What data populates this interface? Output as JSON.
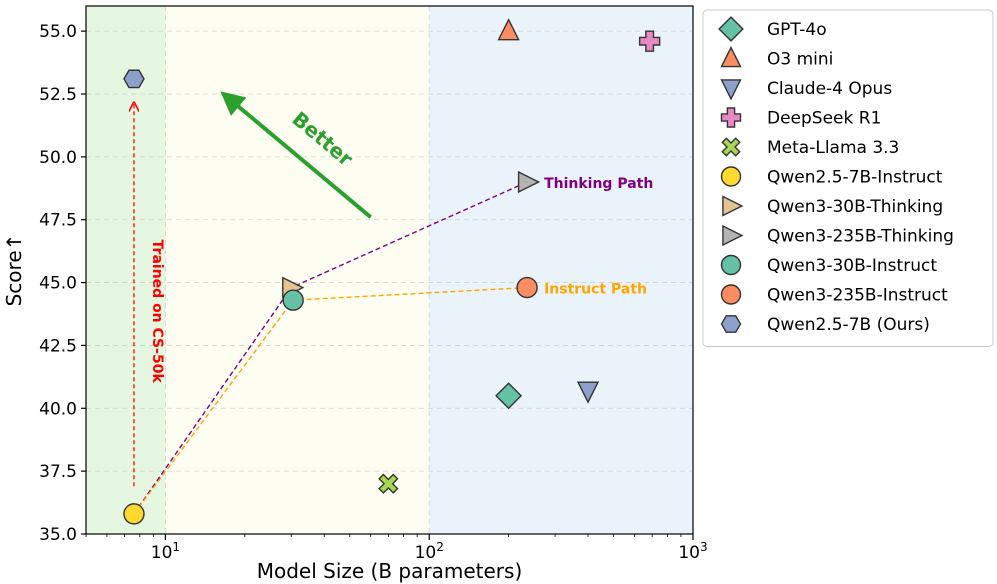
{
  "chart_data": {
    "type": "scatter",
    "xscale": "log",
    "xlim": [
      5,
      1000
    ],
    "ylim": [
      35,
      56
    ],
    "xlabel": "Model Size (B parameters)",
    "ylabel": "Score",
    "ylabel_arrow": "↑",
    "x_ticks": [
      {
        "value": 10,
        "base": "10",
        "exp": "1"
      },
      {
        "value": 100,
        "base": "10",
        "exp": "2"
      },
      {
        "value": 1000,
        "base": "10",
        "exp": "3"
      }
    ],
    "y_ticks": [
      "35.0",
      "37.5",
      "40.0",
      "42.5",
      "45.0",
      "47.5",
      "50.0",
      "52.5",
      "55.0"
    ],
    "grid": true,
    "regions": [
      {
        "from": 5,
        "to": 10,
        "color": "#e6f7e1"
      },
      {
        "from": 10,
        "to": 100,
        "color": "#fdfdf1"
      },
      {
        "from": 100,
        "to": 1000,
        "color": "#eaf2fa"
      }
    ],
    "series": [
      {
        "name": "GPT-4o",
        "x": 200,
        "y": 40.5,
        "marker": "diamond",
        "color": "#66c2a5"
      },
      {
        "name": "O3 mini",
        "x": 200,
        "y": 55.0,
        "marker": "triangle-up",
        "color": "#fc8d62"
      },
      {
        "name": "Claude-4 Opus",
        "x": 400,
        "y": 40.7,
        "marker": "triangle-down",
        "color": "#8da0cb"
      },
      {
        "name": "DeepSeek R1",
        "x": 685,
        "y": 54.6,
        "marker": "plus",
        "color": "#e78ac3"
      },
      {
        "name": "Meta-Llama 3.3",
        "x": 70,
        "y": 37.0,
        "marker": "x",
        "color": "#a6d854"
      },
      {
        "name": "Qwen2.5-7B-Instruct",
        "x": 7.6,
        "y": 35.8,
        "marker": "circle",
        "color": "#ffd92f"
      },
      {
        "name": "Qwen3-30B-Thinking",
        "x": 30,
        "y": 44.8,
        "marker": "triangle-right",
        "color": "#e5c494"
      },
      {
        "name": "Qwen3-235B-Thinking",
        "x": 235,
        "y": 49.0,
        "marker": "triangle-right",
        "color": "#b3b3b3"
      },
      {
        "name": "Qwen3-30B-Instruct",
        "x": 30.5,
        "y": 44.3,
        "marker": "circle",
        "color": "#66c2a5"
      },
      {
        "name": "Qwen3-235B-Instruct",
        "x": 235,
        "y": 44.8,
        "marker": "circle",
        "color": "#fc8d62"
      },
      {
        "name": "Qwen2.5-7B (Ours)",
        "x": 7.6,
        "y": 53.1,
        "marker": "hexagon",
        "color": "#8da0cb"
      }
    ],
    "paths": [
      {
        "label": "Thinking Path",
        "color": "#800080",
        "points": [
          [
            7.6,
            35.8
          ],
          [
            30,
            44.8
          ],
          [
            235,
            49.0
          ]
        ]
      },
      {
        "label": "Instruct Path",
        "color": "#ffa500",
        "points": [
          [
            7.6,
            35.8
          ],
          [
            30.5,
            44.3
          ],
          [
            235,
            44.8
          ]
        ]
      }
    ],
    "annotations": {
      "better": {
        "text": "Better",
        "color": "#2ca02c",
        "from": [
          60,
          47.6
        ],
        "to": [
          17.5,
          52.3
        ]
      },
      "trained": {
        "text": "Trained on CS-50k",
        "color": "#ff0000",
        "x": 7.6,
        "from": 36.9,
        "to": 52.1
      }
    },
    "legend_position": "top-right outside"
  }
}
